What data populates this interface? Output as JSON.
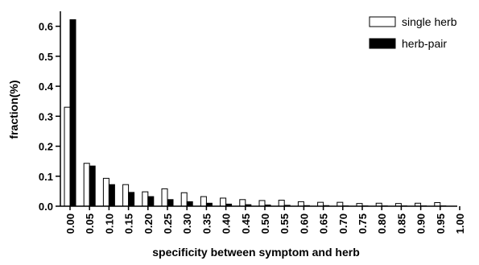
{
  "chart_data": {
    "type": "bar",
    "title": "",
    "xlabel": "specificity between symptom and herb",
    "ylabel": "fraction(%)",
    "ylim": [
      0,
      0.65
    ],
    "y_ticks": [
      "0.0",
      "0.1",
      "0.2",
      "0.3",
      "0.4",
      "0.5",
      "0.6"
    ],
    "x_ticks": [
      "0.00",
      "0.05",
      "0.10",
      "0.15",
      "0.20",
      "0.25",
      "0.30",
      "0.35",
      "0.40",
      "0.45",
      "0.50",
      "0.55",
      "0.60",
      "0.65",
      "0.70",
      "0.75",
      "0.80",
      "0.85",
      "0.90",
      "0.95",
      "1.00"
    ],
    "categories": [
      "0.00",
      "0.05",
      "0.10",
      "0.15",
      "0.20",
      "0.25",
      "0.30",
      "0.35",
      "0.40",
      "0.45",
      "0.50",
      "0.55",
      "0.60",
      "0.65",
      "0.70",
      "0.75",
      "0.80",
      "0.85",
      "0.90",
      "0.95",
      "1.00"
    ],
    "series": [
      {
        "name": "single herb",
        "fill": "#ffffff",
        "values": [
          0.33,
          0.143,
          0.093,
          0.072,
          0.048,
          0.058,
          0.045,
          0.032,
          0.027,
          0.022,
          0.019,
          0.02,
          0.015,
          0.013,
          0.013,
          0.009,
          0.01,
          0.009,
          0.01,
          0.012,
          0
        ]
      },
      {
        "name": "herb-pair",
        "fill": "#000000",
        "values": [
          0.622,
          0.134,
          0.072,
          0.046,
          0.032,
          0.022,
          0.015,
          0.01,
          0.007,
          0.005,
          0.004,
          0.003,
          0.002,
          0.002,
          0.001,
          0.001,
          0.001,
          0.001,
          0.001,
          0.001,
          0
        ]
      }
    ],
    "grid": false,
    "legend_position": "top-right"
  }
}
